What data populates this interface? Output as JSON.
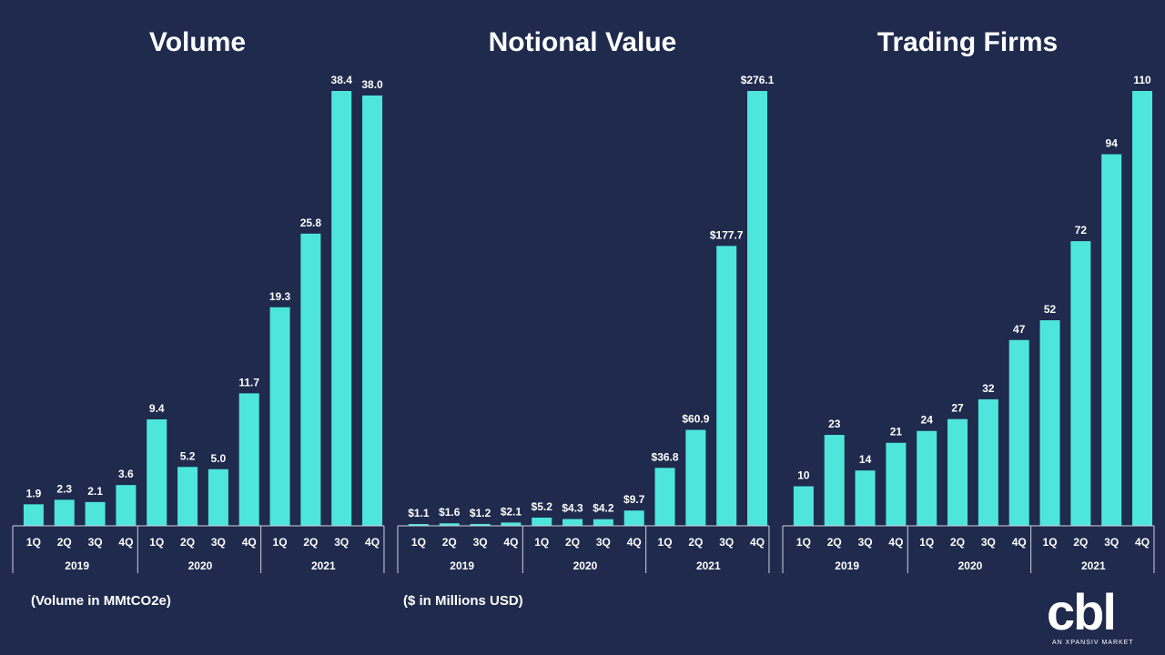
{
  "chart_data": [
    {
      "type": "bar",
      "title": "Volume",
      "note": "(Volume in MMtCO2e)",
      "categories": [
        "1Q",
        "2Q",
        "3Q",
        "4Q",
        "1Q",
        "2Q",
        "3Q",
        "4Q",
        "1Q",
        "2Q",
        "3Q",
        "4Q"
      ],
      "groups": [
        {
          "label": "2019",
          "count": 4
        },
        {
          "label": "2020",
          "count": 4
        },
        {
          "label": "2021",
          "count": 4
        }
      ],
      "values": [
        1.9,
        2.3,
        2.1,
        3.6,
        9.4,
        5.2,
        5.0,
        11.7,
        19.3,
        25.8,
        38.4,
        38.0
      ],
      "labels": [
        "1.9",
        "2.3",
        "2.1",
        "3.6",
        "9.4",
        "5.2",
        "5.0",
        "11.7",
        "19.3",
        "25.8",
        "38.4",
        "38.0"
      ],
      "ymax": 38.4,
      "grid": false,
      "bar_color": "#4ee6dc"
    },
    {
      "type": "bar",
      "title": "Notional Value",
      "note": "($ in Millions USD)",
      "categories": [
        "1Q",
        "2Q",
        "3Q",
        "4Q",
        "1Q",
        "2Q",
        "3Q",
        "4Q",
        "1Q",
        "2Q",
        "3Q",
        "4Q"
      ],
      "groups": [
        {
          "label": "2019",
          "count": 4
        },
        {
          "label": "2020",
          "count": 4
        },
        {
          "label": "2021",
          "count": 4
        }
      ],
      "values": [
        1.1,
        1.6,
        1.2,
        2.1,
        5.2,
        4.3,
        4.2,
        9.7,
        36.8,
        60.9,
        177.7,
        276.1
      ],
      "labels": [
        "$1.1",
        "$1.6",
        "$1.2",
        "$2.1",
        "$5.2",
        "$4.3",
        "$4.2",
        "$9.7",
        "$36.8",
        "$60.9",
        "$177.7",
        "$276.1"
      ],
      "ymax": 276.1,
      "grid": false,
      "bar_color": "#4ee6dc"
    },
    {
      "type": "bar",
      "title": "Trading Firms",
      "note": "",
      "categories": [
        "1Q",
        "2Q",
        "3Q",
        "4Q",
        "1Q",
        "2Q",
        "3Q",
        "4Q",
        "1Q",
        "2Q",
        "3Q",
        "4Q"
      ],
      "groups": [
        {
          "label": "2019",
          "count": 4
        },
        {
          "label": "2020",
          "count": 4
        },
        {
          "label": "2021",
          "count": 4
        }
      ],
      "values": [
        10,
        23,
        14,
        21,
        24,
        27,
        32,
        47,
        52,
        72,
        94,
        110
      ],
      "labels": [
        "10",
        "23",
        "14",
        "21",
        "24",
        "27",
        "32",
        "47",
        "52",
        "72",
        "94",
        "110"
      ],
      "ymax": 110,
      "grid": false,
      "bar_color": "#4ee6dc"
    }
  ],
  "logo": {
    "text": "cbl",
    "tagline": "AN XPANSIV MARKET"
  },
  "colors": {
    "background": "#1f2a4d",
    "bar": "#4ee6dc",
    "axis": "#cfd3de",
    "text": "#ffffff"
  }
}
